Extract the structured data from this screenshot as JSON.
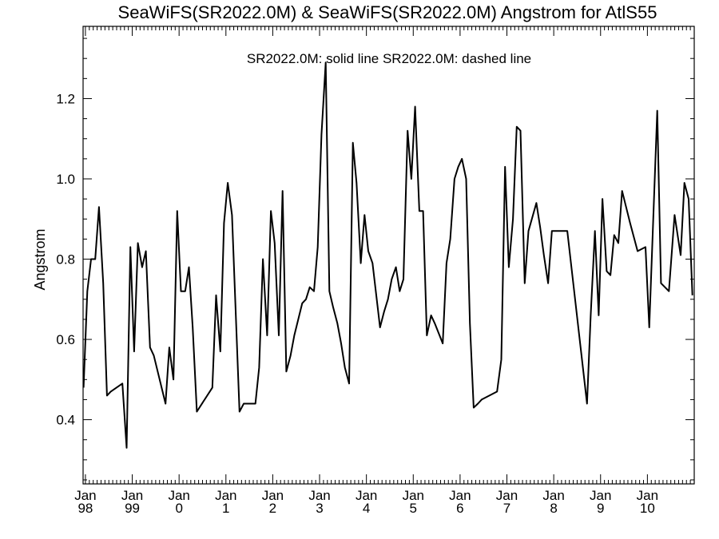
{
  "chart_data": {
    "type": "line",
    "title": "SeaWiFS(SR2022.0M) & SeaWiFS(SR2022.0M)  Angstrom for AtlS55",
    "legend_text": "SR2022.0M: solid line   SR2022.0M: dashed line",
    "ylabel": "Angstrom",
    "xlabel": "",
    "xlim": [
      1997.95,
      2011.0
    ],
    "ylim": [
      0.24,
      1.38
    ],
    "yticks": [
      {
        "value": 0.4,
        "label": "0.4"
      },
      {
        "value": 0.6,
        "label": "0.6"
      },
      {
        "value": 0.8,
        "label": "0.8"
      },
      {
        "value": 1.0,
        "label": "1.0"
      },
      {
        "value": 1.2,
        "label": "1.2"
      }
    ],
    "xticks": [
      {
        "value": 1998,
        "label1": "Jan",
        "label2": "98"
      },
      {
        "value": 1999,
        "label1": "Jan",
        "label2": "99"
      },
      {
        "value": 2000,
        "label1": "Jan",
        "label2": "0"
      },
      {
        "value": 2001,
        "label1": "Jan",
        "label2": "1"
      },
      {
        "value": 2002,
        "label1": "Jan",
        "label2": "2"
      },
      {
        "value": 2003,
        "label1": "Jan",
        "label2": "3"
      },
      {
        "value": 2004,
        "label1": "Jan",
        "label2": "4"
      },
      {
        "value": 2005,
        "label1": "Jan",
        "label2": "5"
      },
      {
        "value": 2006,
        "label1": "Jan",
        "label2": "6"
      },
      {
        "value": 2007,
        "label1": "Jan",
        "label2": "7"
      },
      {
        "value": 2008,
        "label1": "Jan",
        "label2": "8"
      },
      {
        "value": 2009,
        "label1": "Jan",
        "label2": "9"
      },
      {
        "value": 2010,
        "label1": "Jan",
        "label2": "10"
      }
    ],
    "grid": false,
    "series": [
      {
        "style": "solid",
        "color": "#000000",
        "x": [
          1997.96,
          1998.04,
          1998.12,
          1998.21,
          1998.29,
          1998.38,
          1998.46,
          1998.54,
          1998.79,
          1998.88,
          1998.96,
          1999.04,
          1999.12,
          1999.21,
          1999.29,
          1999.38,
          1999.46,
          1999.71,
          1999.79,
          1999.88,
          1999.96,
          2000.04,
          2000.13,
          2000.21,
          2000.29,
          2000.38,
          2000.71,
          2000.79,
          2000.88,
          2000.96,
          2001.04,
          2001.13,
          2001.29,
          2001.38,
          2001.63,
          2001.71,
          2001.79,
          2001.88,
          2001.96,
          2002.04,
          2002.13,
          2002.21,
          2002.29,
          2002.38,
          2002.46,
          2002.63,
          2002.71,
          2002.79,
          2002.88,
          2002.96,
          2003.04,
          2003.13,
          2003.21,
          2003.29,
          2003.38,
          2003.46,
          2003.54,
          2003.63,
          2003.71,
          2003.79,
          2003.88,
          2003.96,
          2004.04,
          2004.13,
          2004.29,
          2004.38,
          2004.46,
          2004.54,
          2004.63,
          2004.71,
          2004.79,
          2004.88,
          2004.96,
          2005.04,
          2005.13,
          2005.21,
          2005.29,
          2005.38,
          2005.46,
          2005.63,
          2005.71,
          2005.79,
          2005.88,
          2005.96,
          2006.04,
          2006.13,
          2006.21,
          2006.29,
          2006.38,
          2006.46,
          2006.79,
          2006.88,
          2006.96,
          2007.04,
          2007.13,
          2007.21,
          2007.29,
          2007.38,
          2007.46,
          2007.63,
          2007.71,
          2007.79,
          2007.88,
          2007.96,
          2008.29,
          2008.71,
          2008.79,
          2008.88,
          2008.96,
          2009.04,
          2009.13,
          2009.21,
          2009.29,
          2009.38,
          2009.46,
          2009.63,
          2009.79,
          2009.96,
          2010.04,
          2010.21,
          2010.29,
          2010.46,
          2010.58,
          2010.71,
          2010.79,
          2010.88,
          2010.96
        ],
        "y": [
          0.48,
          0.72,
          0.8,
          0.8,
          0.93,
          0.74,
          0.46,
          0.47,
          0.49,
          0.33,
          0.83,
          0.57,
          0.84,
          0.78,
          0.82,
          0.58,
          0.56,
          0.44,
          0.58,
          0.5,
          0.92,
          0.72,
          0.72,
          0.78,
          0.63,
          0.42,
          0.48,
          0.71,
          0.57,
          0.89,
          0.99,
          0.91,
          0.42,
          0.44,
          0.44,
          0.53,
          0.8,
          0.61,
          0.92,
          0.84,
          0.61,
          0.97,
          0.52,
          0.56,
          0.61,
          0.69,
          0.7,
          0.73,
          0.72,
          0.83,
          1.11,
          1.29,
          0.72,
          0.68,
          0.64,
          0.59,
          0.53,
          0.49,
          1.09,
          0.99,
          0.79,
          0.91,
          0.82,
          0.79,
          0.63,
          0.67,
          0.7,
          0.75,
          0.78,
          0.72,
          0.75,
          1.12,
          1.0,
          1.18,
          0.92,
          0.92,
          0.61,
          0.66,
          0.64,
          0.59,
          0.79,
          0.85,
          1.0,
          1.03,
          1.05,
          1.0,
          0.64,
          0.43,
          0.44,
          0.45,
          0.47,
          0.55,
          1.03,
          0.78,
          0.9,
          1.13,
          1.12,
          0.74,
          0.87,
          0.94,
          0.88,
          0.81,
          0.74,
          0.87,
          0.87,
          0.44,
          0.66,
          0.87,
          0.66,
          0.95,
          0.77,
          0.76,
          0.86,
          0.84,
          0.97,
          0.89,
          0.82,
          0.83,
          0.63,
          1.17,
          0.74,
          0.72,
          0.91,
          0.81,
          0.99,
          0.95,
          0.71
        ]
      }
    ]
  }
}
